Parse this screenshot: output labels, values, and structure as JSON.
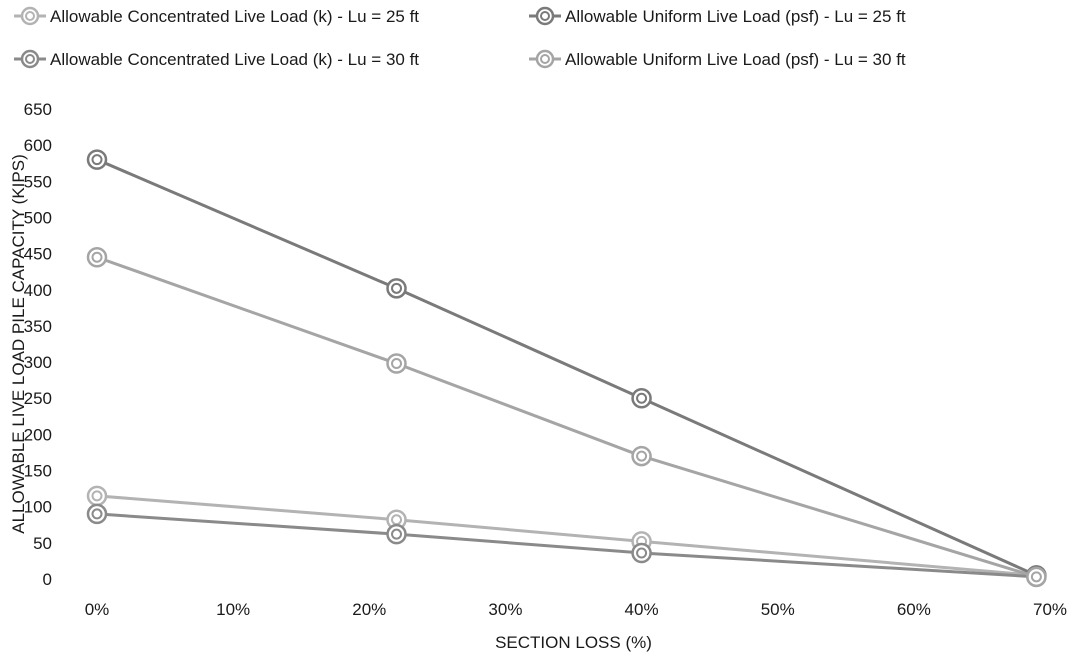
{
  "chart_data": {
    "type": "line",
    "title": "",
    "xlabel": "SECTION LOSS (%)",
    "ylabel": "ALLOWABLE LIVE LOAD PILE CAPACITY (KIPS)",
    "xlim": [
      0,
      70
    ],
    "ylim": [
      0,
      650
    ],
    "x_ticks": [
      "0%",
      "10%",
      "20%",
      "30%",
      "40%",
      "50%",
      "60%",
      "70%"
    ],
    "x_tick_values": [
      0,
      10,
      20,
      30,
      40,
      50,
      60,
      70
    ],
    "y_ticks": [
      "0",
      "50",
      "100",
      "150",
      "200",
      "250",
      "300",
      "350",
      "400",
      "450",
      "500",
      "550",
      "600",
      "650"
    ],
    "y_tick_values": [
      0,
      50,
      100,
      150,
      200,
      250,
      300,
      350,
      400,
      450,
      500,
      550,
      600,
      650
    ],
    "grid": false,
    "legend_position": "top",
    "x": [
      0,
      22,
      40,
      69
    ],
    "series": [
      {
        "name": "Allowable Concentrated Live Load (k) - Lu = 25 ft",
        "values": [
          115,
          82,
          52,
          5
        ],
        "color": "#b3b3b3"
      },
      {
        "name": "Allowable Uniform Live Load (psf) - Lu = 25 ft",
        "values": [
          580,
          402,
          250,
          5
        ],
        "color": "#7a7a7a"
      },
      {
        "name": "Allowable Concentrated Live Load (k) - Lu = 30 ft",
        "values": [
          90,
          62,
          36,
          3
        ],
        "color": "#8a8a8a"
      },
      {
        "name": "Allowable Uniform Live Load (psf) - Lu = 30 ft",
        "values": [
          445,
          298,
          170,
          3
        ],
        "color": "#a5a5a5"
      }
    ]
  }
}
